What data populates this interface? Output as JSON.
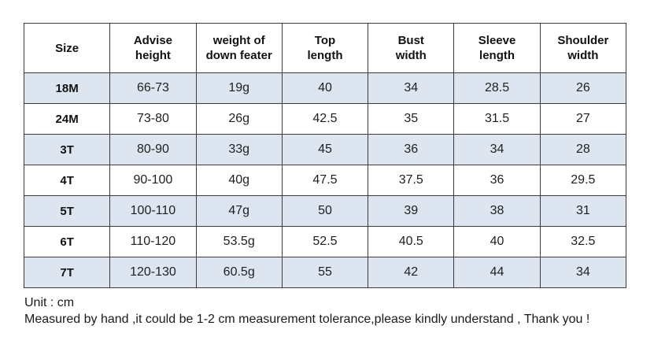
{
  "chart_data": {
    "type": "table",
    "title": "",
    "unit": "cm",
    "columns": [
      "Size",
      "Advise\nheight",
      "weight of\ndown feater",
      "Top\nlength",
      "Bust\nwidth",
      "Sleeve\nlength",
      "Shoulder\nwidth"
    ],
    "rows": [
      [
        "18M",
        "66-73",
        "19g",
        "40",
        "34",
        "28.5",
        "26"
      ],
      [
        "24M",
        "73-80",
        "26g",
        "42.5",
        "35",
        "31.5",
        "27"
      ],
      [
        "3T",
        "80-90",
        "33g",
        "45",
        "36",
        "34",
        "28"
      ],
      [
        "4T",
        "90-100",
        "40g",
        "47.5",
        "37.5",
        "36",
        "29.5"
      ],
      [
        "5T",
        "100-110",
        "47g",
        "50",
        "39",
        "38",
        "31"
      ],
      [
        "6T",
        "110-120",
        "53.5g",
        "52.5",
        "40.5",
        "40",
        "32.5"
      ],
      [
        "7T",
        "120-130",
        "60.5g",
        "55",
        "42",
        "44",
        "34"
      ]
    ],
    "notes": [
      "Unit : cm",
      "Measured by hand ,it could be 1-2 cm measurement tolerance,please kindly understand , Thank you !"
    ],
    "layout_hints": {
      "striped_rows": "odd data rows (1st, 3rd, 5th, 7th) shaded",
      "grid": true
    }
  },
  "colors": {
    "row_stripe": "#dde6f0",
    "border": "#3a3a3a",
    "background": "#ffffff",
    "text": "#1f1f1f"
  }
}
